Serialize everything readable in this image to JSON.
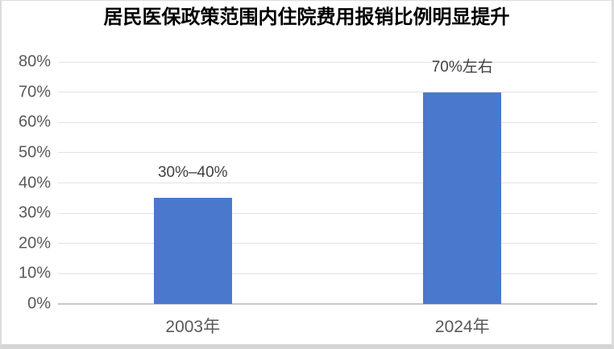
{
  "chart_data": {
    "type": "bar",
    "title": "居民医保政策范围内住院费用报销比例明显提升",
    "categories": [
      "2003年",
      "2024年"
    ],
    "values": [
      35,
      70
    ],
    "value_unit": "percent",
    "data_labels": [
      "30%–40%",
      "70%左右"
    ],
    "ylim": [
      0,
      80
    ],
    "yticks": [
      "0%",
      "10%",
      "20%",
      "30%",
      "40%",
      "50%",
      "60%",
      "70%",
      "80%"
    ],
    "grid": true,
    "legend": "none",
    "bar_color": "#4A78CC",
    "gridline_color": "#E2E2E2",
    "baseline_color": "#C9C9C9",
    "axis_label_color": "#595959",
    "data_label_color": "#404040",
    "title_color": "#000000"
  }
}
